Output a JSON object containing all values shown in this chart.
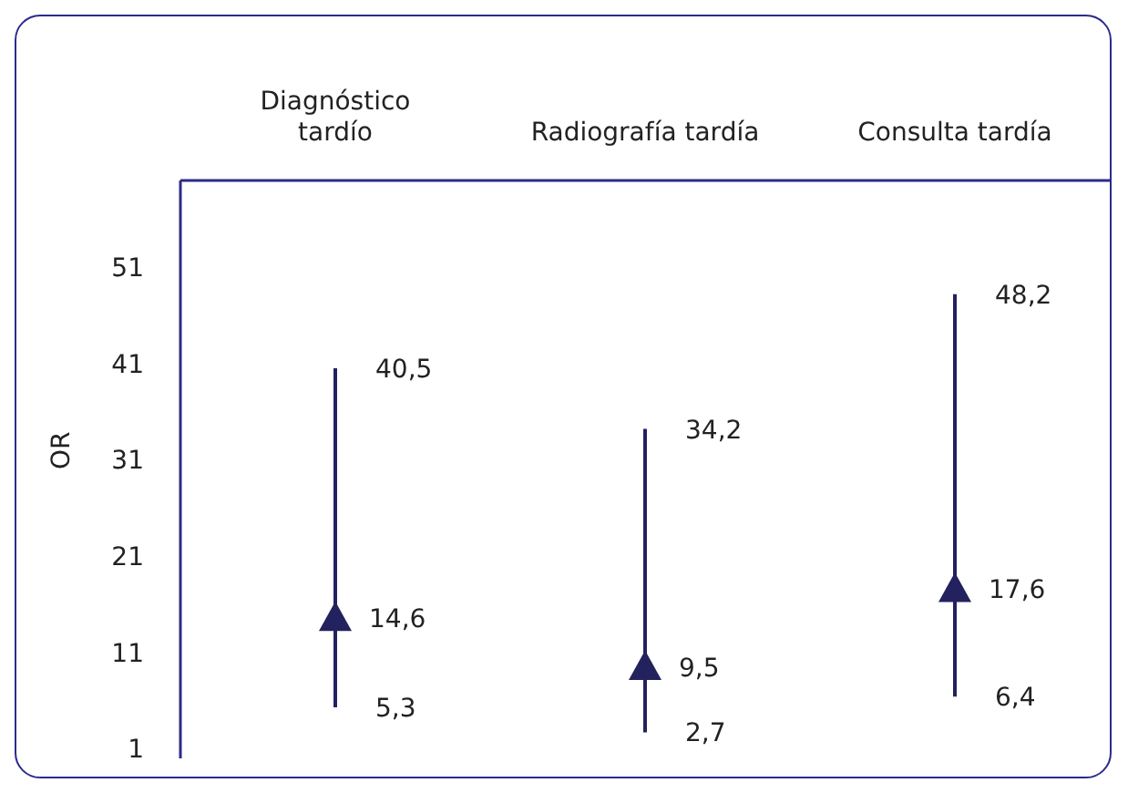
{
  "chart_data": {
    "type": "scatter",
    "ylabel": "OR",
    "categories": [
      "Diagnóstico\ntardío",
      "Radiografía tardía",
      "Consulta tardía"
    ],
    "series": [
      {
        "color": "#23225e",
        "values": [
          14.6,
          9.5,
          17.6
        ],
        "errors": [
          [
            5.3,
            40.5
          ],
          [
            2.7,
            34.2
          ],
          [
            6.4,
            48.2
          ]
        ],
        "value_labels": [
          "14,6",
          "9,5",
          "17,6"
        ]
      }
    ],
    "annotations": [
      {
        "text": "40,5",
        "x": "Diagnóstico\ntardío",
        "y": 40.5
      },
      {
        "text": "5,3",
        "x": "Diagnóstico\ntardío",
        "y": 5.3
      },
      {
        "text": "34,2",
        "x": "Radiografía tardía",
        "y": 34.2
      },
      {
        "text": "2,7",
        "x": "Radiografía tardía",
        "y": 2.7
      },
      {
        "text": "48,2",
        "x": "Consulta tardía",
        "y": 48.2
      },
      {
        "text": "6,4",
        "x": "Consulta tardía",
        "y": 6.4
      }
    ],
    "ylim": [
      0,
      60
    ],
    "yticks": [
      1,
      11,
      21,
      31,
      41,
      51
    ],
    "marker": "triangle",
    "grid": false,
    "legend": false
  }
}
